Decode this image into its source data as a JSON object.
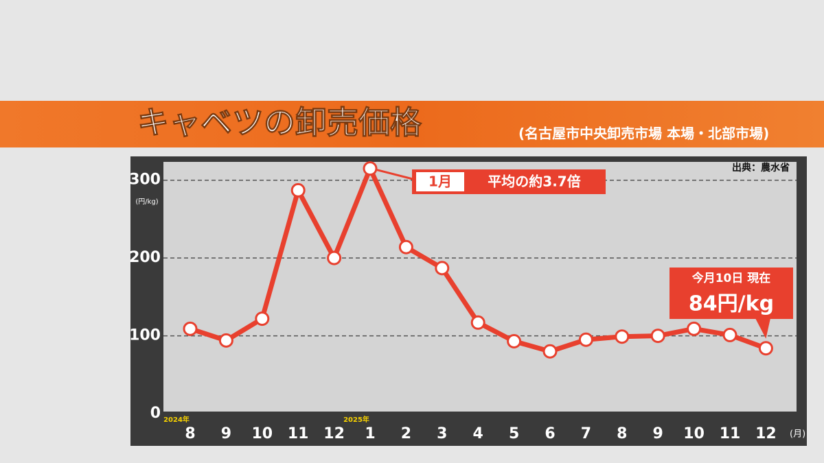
{
  "chart_data": {
    "type": "line",
    "title": "キャベツの卸売価格",
    "subtitle": "(名古屋市中央卸売市場 本場・北部市場)",
    "source": "出典：農水省",
    "y_unit": "(円/kg)",
    "x_unit": "(月)",
    "year_labels": [
      "2024年",
      "2025年"
    ],
    "categories": [
      "8",
      "9",
      "10",
      "11",
      "12",
      "1",
      "2",
      "3",
      "4",
      "5",
      "6",
      "7",
      "8",
      "9",
      "10",
      "11",
      "12"
    ],
    "series": [
      {
        "color": "#e8402e",
        "values": [
          109,
          94,
          122,
          287,
          200,
          315,
          214,
          187,
          117,
          93,
          80,
          95,
          99,
          100,
          109,
          101,
          84
        ]
      }
    ],
    "ylim": [
      0,
      320
    ],
    "yticks": [
      0,
      100,
      200,
      300
    ],
    "grid": true,
    "annotations": {
      "peak_month": "1月",
      "peak_note": "平均の約3.7倍",
      "current_date": "今月10日 現在",
      "current_price": "84円/kg"
    }
  }
}
